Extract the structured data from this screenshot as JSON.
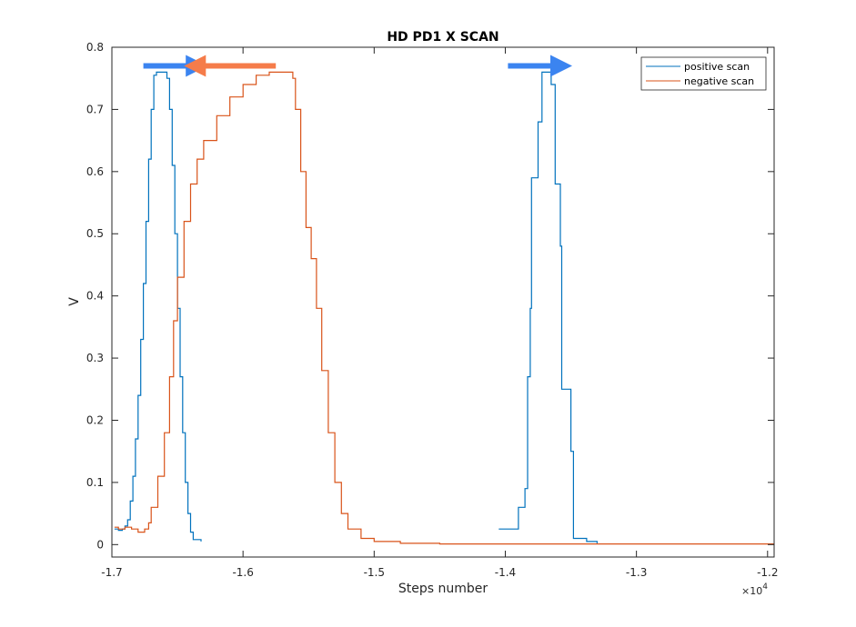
{
  "chart_data": {
    "type": "line",
    "title": "HD PD1 X SCAN",
    "xlabel": "Steps number",
    "ylabel": "V",
    "x_multiplier_label": "×10",
    "x_multiplier_exp": "4",
    "xlim": [
      -17000,
      -11950
    ],
    "ylim": [
      -0.02,
      0.8
    ],
    "xticks": [
      -17000,
      -16000,
      -15000,
      -14000,
      -13000,
      -12000
    ],
    "xtick_labels": [
      "-1.7",
      "-1.6",
      "-1.5",
      "-1.4",
      "-1.3",
      "-1.2"
    ],
    "yticks": [
      0,
      0.1,
      0.2,
      0.3,
      0.4,
      0.5,
      0.6,
      0.7,
      0.8
    ],
    "ytick_labels": [
      "0",
      "0.1",
      "0.2",
      "0.3",
      "0.4",
      "0.5",
      "0.6",
      "0.7",
      "0.8"
    ],
    "grid": false,
    "legend_position": "top-right",
    "series": [
      {
        "name": "positive scan",
        "color": "#0072bd",
        "segments": [
          [
            [
              -16980,
              0.025
            ],
            [
              -16950,
              0.023
            ],
            [
              -16920,
              0.025
            ],
            [
              -16900,
              0.03
            ],
            [
              -16880,
              0.04
            ],
            [
              -16860,
              0.07
            ],
            [
              -16840,
              0.11
            ],
            [
              -16820,
              0.17
            ],
            [
              -16800,
              0.24
            ],
            [
              -16780,
              0.33
            ],
            [
              -16760,
              0.42
            ],
            [
              -16740,
              0.52
            ],
            [
              -16720,
              0.62
            ],
            [
              -16700,
              0.7
            ],
            [
              -16680,
              0.755
            ],
            [
              -16660,
              0.76
            ],
            [
              -16600,
              0.76
            ],
            [
              -16580,
              0.75
            ],
            [
              -16560,
              0.7
            ],
            [
              -16540,
              0.61
            ],
            [
              -16520,
              0.5
            ],
            [
              -16500,
              0.38
            ],
            [
              -16480,
              0.27
            ],
            [
              -16460,
              0.18
            ],
            [
              -16440,
              0.1
            ],
            [
              -16420,
              0.05
            ],
            [
              -16400,
              0.02
            ],
            [
              -16380,
              0.008
            ],
            [
              -16320,
              0.005
            ]
          ],
          [
            [
              -14050,
              0.025
            ],
            [
              -13950,
              0.025
            ],
            [
              -13900,
              0.06
            ],
            [
              -13850,
              0.09
            ],
            [
              -13830,
              0.27
            ],
            [
              -13810,
              0.38
            ],
            [
              -13800,
              0.59
            ],
            [
              -13750,
              0.68
            ],
            [
              -13720,
              0.76
            ],
            [
              -13650,
              0.74
            ],
            [
              -13620,
              0.58
            ],
            [
              -13580,
              0.48
            ],
            [
              -13570,
              0.25
            ],
            [
              -13500,
              0.15
            ],
            [
              -13480,
              0.01
            ],
            [
              -13400,
              0.01
            ],
            [
              -13380,
              0.005
            ],
            [
              -13300,
              0.002
            ]
          ]
        ]
      },
      {
        "name": "negative scan",
        "color": "#d95319",
        "segments": [
          [
            [
              -16980,
              0.028
            ],
            [
              -16950,
              0.025
            ],
            [
              -16900,
              0.028
            ],
            [
              -16850,
              0.025
            ],
            [
              -16800,
              0.02
            ],
            [
              -16750,
              0.025
            ],
            [
              -16720,
              0.035
            ],
            [
              -16700,
              0.06
            ],
            [
              -16650,
              0.11
            ],
            [
              -16600,
              0.18
            ],
            [
              -16560,
              0.27
            ],
            [
              -16530,
              0.36
            ],
            [
              -16500,
              0.43
            ],
            [
              -16450,
              0.52
            ],
            [
              -16400,
              0.58
            ],
            [
              -16350,
              0.62
            ],
            [
              -16300,
              0.65
            ],
            [
              -16200,
              0.69
            ],
            [
              -16100,
              0.72
            ],
            [
              -16000,
              0.74
            ],
            [
              -15900,
              0.755
            ],
            [
              -15800,
              0.76
            ],
            [
              -15650,
              0.76
            ],
            [
              -15620,
              0.75
            ],
            [
              -15600,
              0.7
            ],
            [
              -15560,
              0.6
            ],
            [
              -15520,
              0.51
            ],
            [
              -15480,
              0.46
            ],
            [
              -15440,
              0.38
            ],
            [
              -15400,
              0.28
            ],
            [
              -15350,
              0.18
            ],
            [
              -15300,
              0.1
            ],
            [
              -15250,
              0.05
            ],
            [
              -15200,
              0.025
            ],
            [
              -15100,
              0.01
            ],
            [
              -15000,
              0.005
            ],
            [
              -14800,
              0.002
            ],
            [
              -14500,
              0.001
            ],
            [
              -11950,
              0.001
            ]
          ]
        ]
      }
    ],
    "annotations": [
      {
        "type": "arrow",
        "direction": "right",
        "color": "#3b84f0",
        "x": [
          -16760,
          -16270
        ],
        "y": 0.77
      },
      {
        "type": "arrow",
        "direction": "left",
        "color": "#f57c4a",
        "x": [
          -16450,
          -15750
        ],
        "y": 0.77
      },
      {
        "type": "arrow",
        "direction": "right",
        "color": "#3b84f0",
        "x": [
          -13980,
          -13490
        ],
        "y": 0.77
      }
    ]
  }
}
